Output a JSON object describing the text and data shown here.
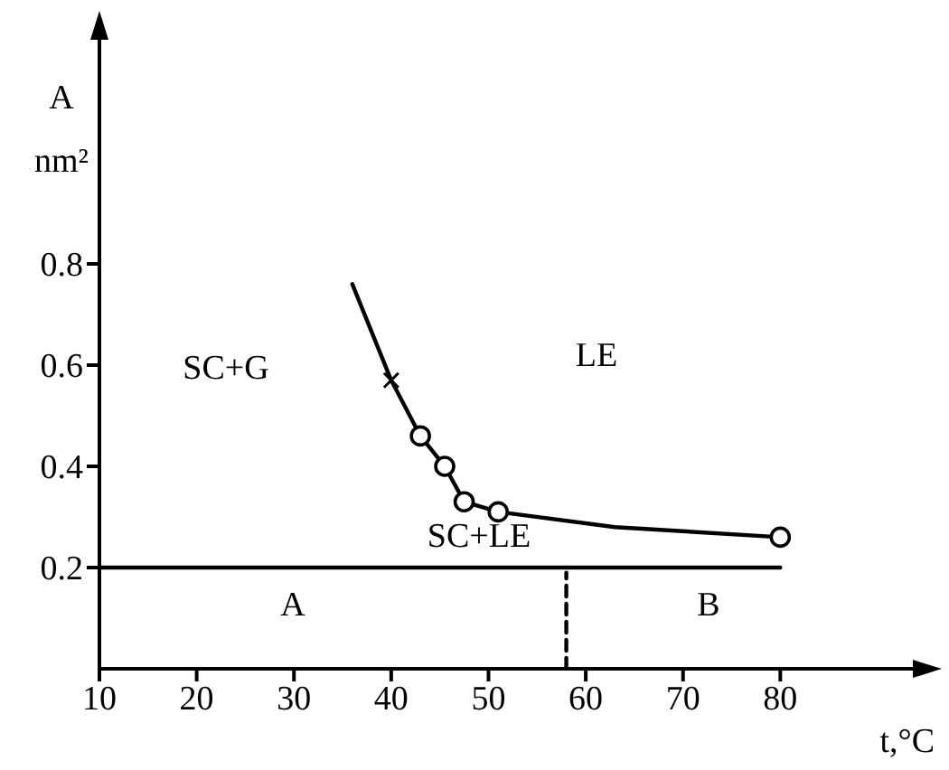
{
  "chart_data": {
    "type": "line",
    "xlabel": "t,°C",
    "ylabel": "A nm²",
    "xlim": [
      10,
      94
    ],
    "xticks": [
      10,
      20,
      30,
      40,
      50,
      60,
      70,
      80
    ],
    "ylim": [
      0,
      1.25
    ],
    "yticks": [
      0.2,
      0.4,
      0.6,
      0.8
    ],
    "series": [
      {
        "marker": "none",
        "color": "#000000",
        "x": [
          36,
          40,
          43,
          45.5,
          47.5,
          51,
          63,
          80
        ],
        "values": [
          0.76,
          0.57,
          0.46,
          0.4,
          0.33,
          0.31,
          0.28,
          0.26
        ]
      },
      {
        "type": "scatter",
        "marker": "circle",
        "color": "#000000",
        "x": [
          43,
          45.5,
          47.5,
          51,
          80
        ],
        "values": [
          0.46,
          0.4,
          0.33,
          0.31,
          0.26
        ]
      },
      {
        "type": "scatter",
        "marker": "cross",
        "color": "#000000",
        "x": [
          40
        ],
        "values": [
          0.57
        ]
      },
      {
        "marker": "none",
        "color": "#000000",
        "x": [
          10,
          80
        ],
        "values": [
          0.2,
          0.2
        ]
      },
      {
        "marker": "none",
        "line_style": "dashed",
        "color": "#000000",
        "x": [
          58,
          58
        ],
        "values": [
          0,
          0.19
        ]
      }
    ],
    "annotations": [
      "SC+G",
      "LE",
      "SC+LE",
      "A",
      "B"
    ]
  }
}
